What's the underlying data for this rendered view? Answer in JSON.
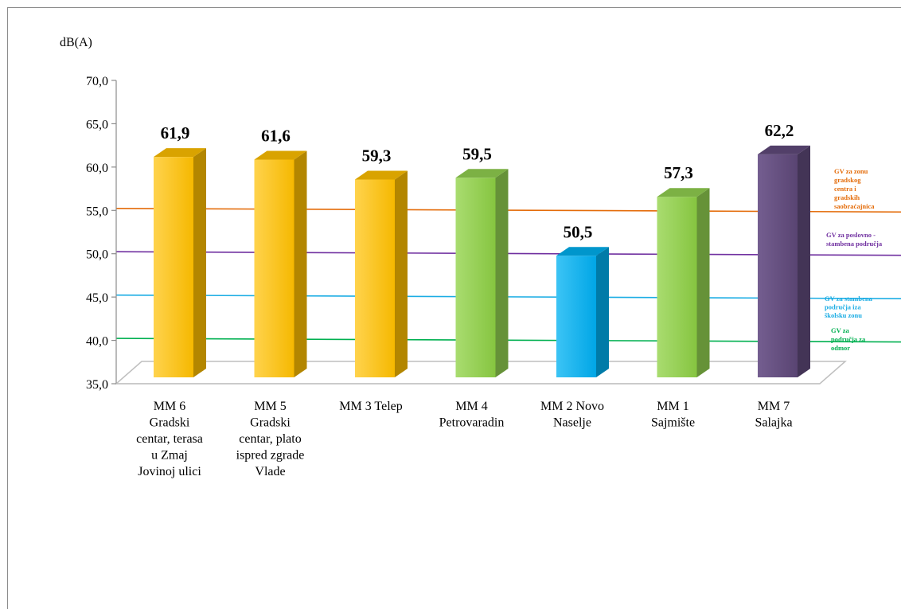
{
  "chart_data": {
    "type": "bar",
    "ylabel": "dB(A)",
    "ylim": [
      35,
      70
    ],
    "yticks": [
      "35,0",
      "40,0",
      "45,0",
      "50,0",
      "55,0",
      "60,0",
      "65,0",
      "70,0"
    ],
    "categories": [
      "MM 6 Gradski centar, terasa u Zmaj Jovinoj ulici",
      "MM 5 Gradski centar, plato ispred zgrade Vlade",
      "MM 3 Telep",
      "MM 4 Petrovaradin",
      "MM 2 Novo Naselje",
      "MM 1 Sajmište",
      "MM 7 Salajka"
    ],
    "category_lines": [
      [
        "MM 6",
        "Gradski",
        "centar, terasa",
        "u Zmaj",
        "Jovinoj ulici"
      ],
      [
        "MM 5",
        "Gradski",
        "centar, plato",
        "ispred zgrade",
        "Vlade"
      ],
      [
        "MM 3 Telep"
      ],
      [
        "MM 4",
        "Petrovaradin"
      ],
      [
        "MM 2 Novo",
        "Naselje"
      ],
      [
        "MM 1",
        "Sajmište"
      ],
      [
        "MM 7",
        "Salajka"
      ]
    ],
    "values": [
      61.9,
      61.6,
      59.3,
      59.5,
      50.5,
      57.3,
      62.2
    ],
    "value_labels": [
      "61,9",
      "61,6",
      "59,3",
      "59,5",
      "50,5",
      "57,3",
      "62,2"
    ],
    "bar_colors": [
      "#ffc000",
      "#ffc000",
      "#ffc000",
      "#92d050",
      "#00b0f0",
      "#92d050",
      "#604a7b"
    ],
    "reference_lines": [
      {
        "value": 55,
        "color": "#e46c0a",
        "label_lines": [
          "GV za zonu",
          "gradskog",
          "centra  i",
          "gradskih",
          "saobraćajnica"
        ]
      },
      {
        "value": 50,
        "color": "#7030a0",
        "label_lines": [
          "GV za poslovno -",
          "stambena područja"
        ]
      },
      {
        "value": 45,
        "color": "#1cade4",
        "label_lines": [
          "GV za stambena",
          "područja iza",
          "školsku zonu"
        ]
      },
      {
        "value": 40,
        "color": "#00b050",
        "label_lines": [
          "GV za",
          "područja za",
          "odmor"
        ]
      }
    ],
    "grid": false,
    "legend": "right"
  }
}
